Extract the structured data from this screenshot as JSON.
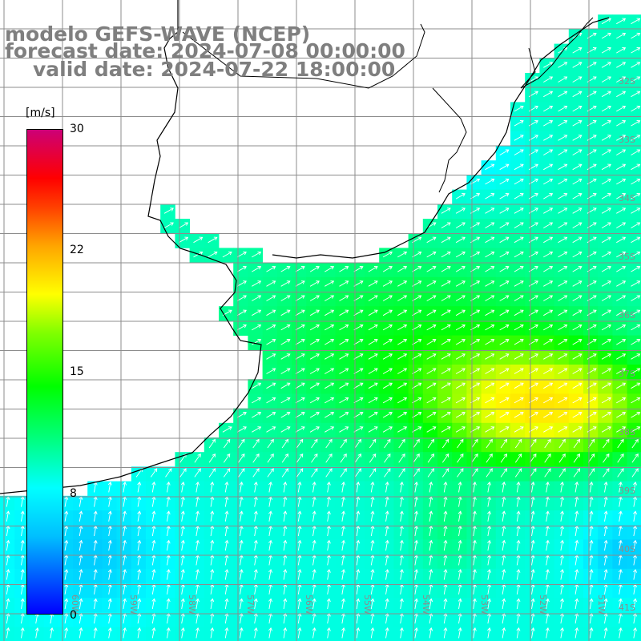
{
  "title": {
    "line1": "modelo GEFS-WAVE (NCEP)",
    "line2": "forecast date: 2024-07-08 00:00:00",
    "line3": "valid date: 2024-07-22 18:00:00"
  },
  "colorbar": {
    "unit": "[m/s]",
    "ticks": [
      "30",
      "22",
      "15",
      "8",
      "0"
    ],
    "range": [
      0,
      30
    ]
  },
  "map": {
    "variable": "wind speed with direction arrows",
    "lon_range": [
      -61,
      -50
    ],
    "lat_range": [
      -41,
      -31
    ],
    "lat_labels": [
      "32S",
      "33S",
      "34S",
      "35S",
      "36S",
      "37S",
      "38S",
      "39S",
      "40S",
      "41S"
    ],
    "lon_labels": [
      "60W",
      "59W",
      "58W",
      "57W",
      "56W",
      "55W",
      "54W",
      "53W",
      "52W",
      "51W"
    ],
    "colors": {
      "land": "#ffffff",
      "grid": "#8c8c8c",
      "coast": "#000000",
      "arrow": "#ffffff",
      "label": "#7f7f7f"
    }
  }
}
